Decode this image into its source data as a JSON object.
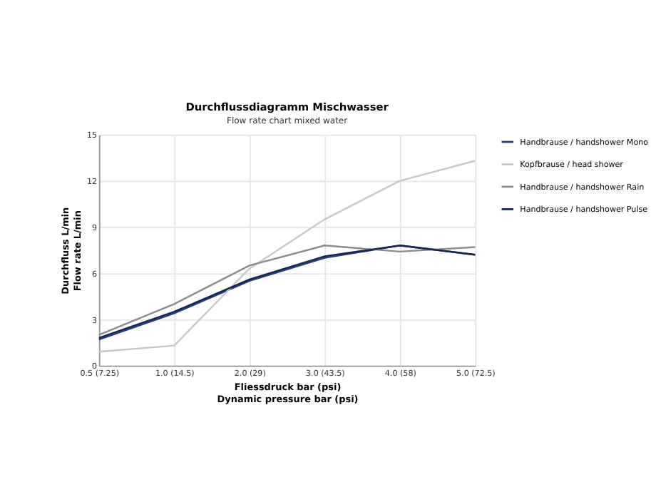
{
  "chart_data": {
    "type": "line",
    "title": "Durchflussdiagramm Mischwasser",
    "subtitle": "Flow rate chart mixed water",
    "xlabel": "Fliessdruck bar (psi)\nDynamic pressure bar (psi)",
    "ylabel": "Durchfluss L/min\nFlow rate L/min",
    "categories": [
      "0.5 (7.25)",
      "1.0 (14.5)",
      "2.0 (29)",
      "3.0 (43.5)",
      "4.0 (58)",
      "5.0 (72.5)"
    ],
    "series": [
      {
        "name": "Handbrause / handshower Mono",
        "color": "#1f3c88",
        "values": [
          1.7,
          3.4,
          5.5,
          7.0,
          7.8,
          7.2
        ]
      },
      {
        "name": "Kopfbrause / head shower",
        "color": "#c8c8c8",
        "values": [
          0.9,
          1.3,
          6.3,
          9.5,
          12.0,
          13.3
        ]
      },
      {
        "name": "Handbrause / handshower Rain",
        "color": "#8c8c8c",
        "values": [
          2.0,
          4.0,
          6.5,
          7.8,
          7.4,
          7.7
        ]
      },
      {
        "name": "Handbrause / handshower Pulse",
        "color": "#16244f",
        "values": [
          1.8,
          3.5,
          5.6,
          7.1,
          7.8,
          7.2
        ]
      }
    ],
    "ylim": [
      0,
      15
    ],
    "yticks": [
      0,
      3,
      6,
      9,
      12,
      15
    ],
    "grid": true,
    "legend": "right",
    "marker": "none",
    "line_style": "solid"
  }
}
